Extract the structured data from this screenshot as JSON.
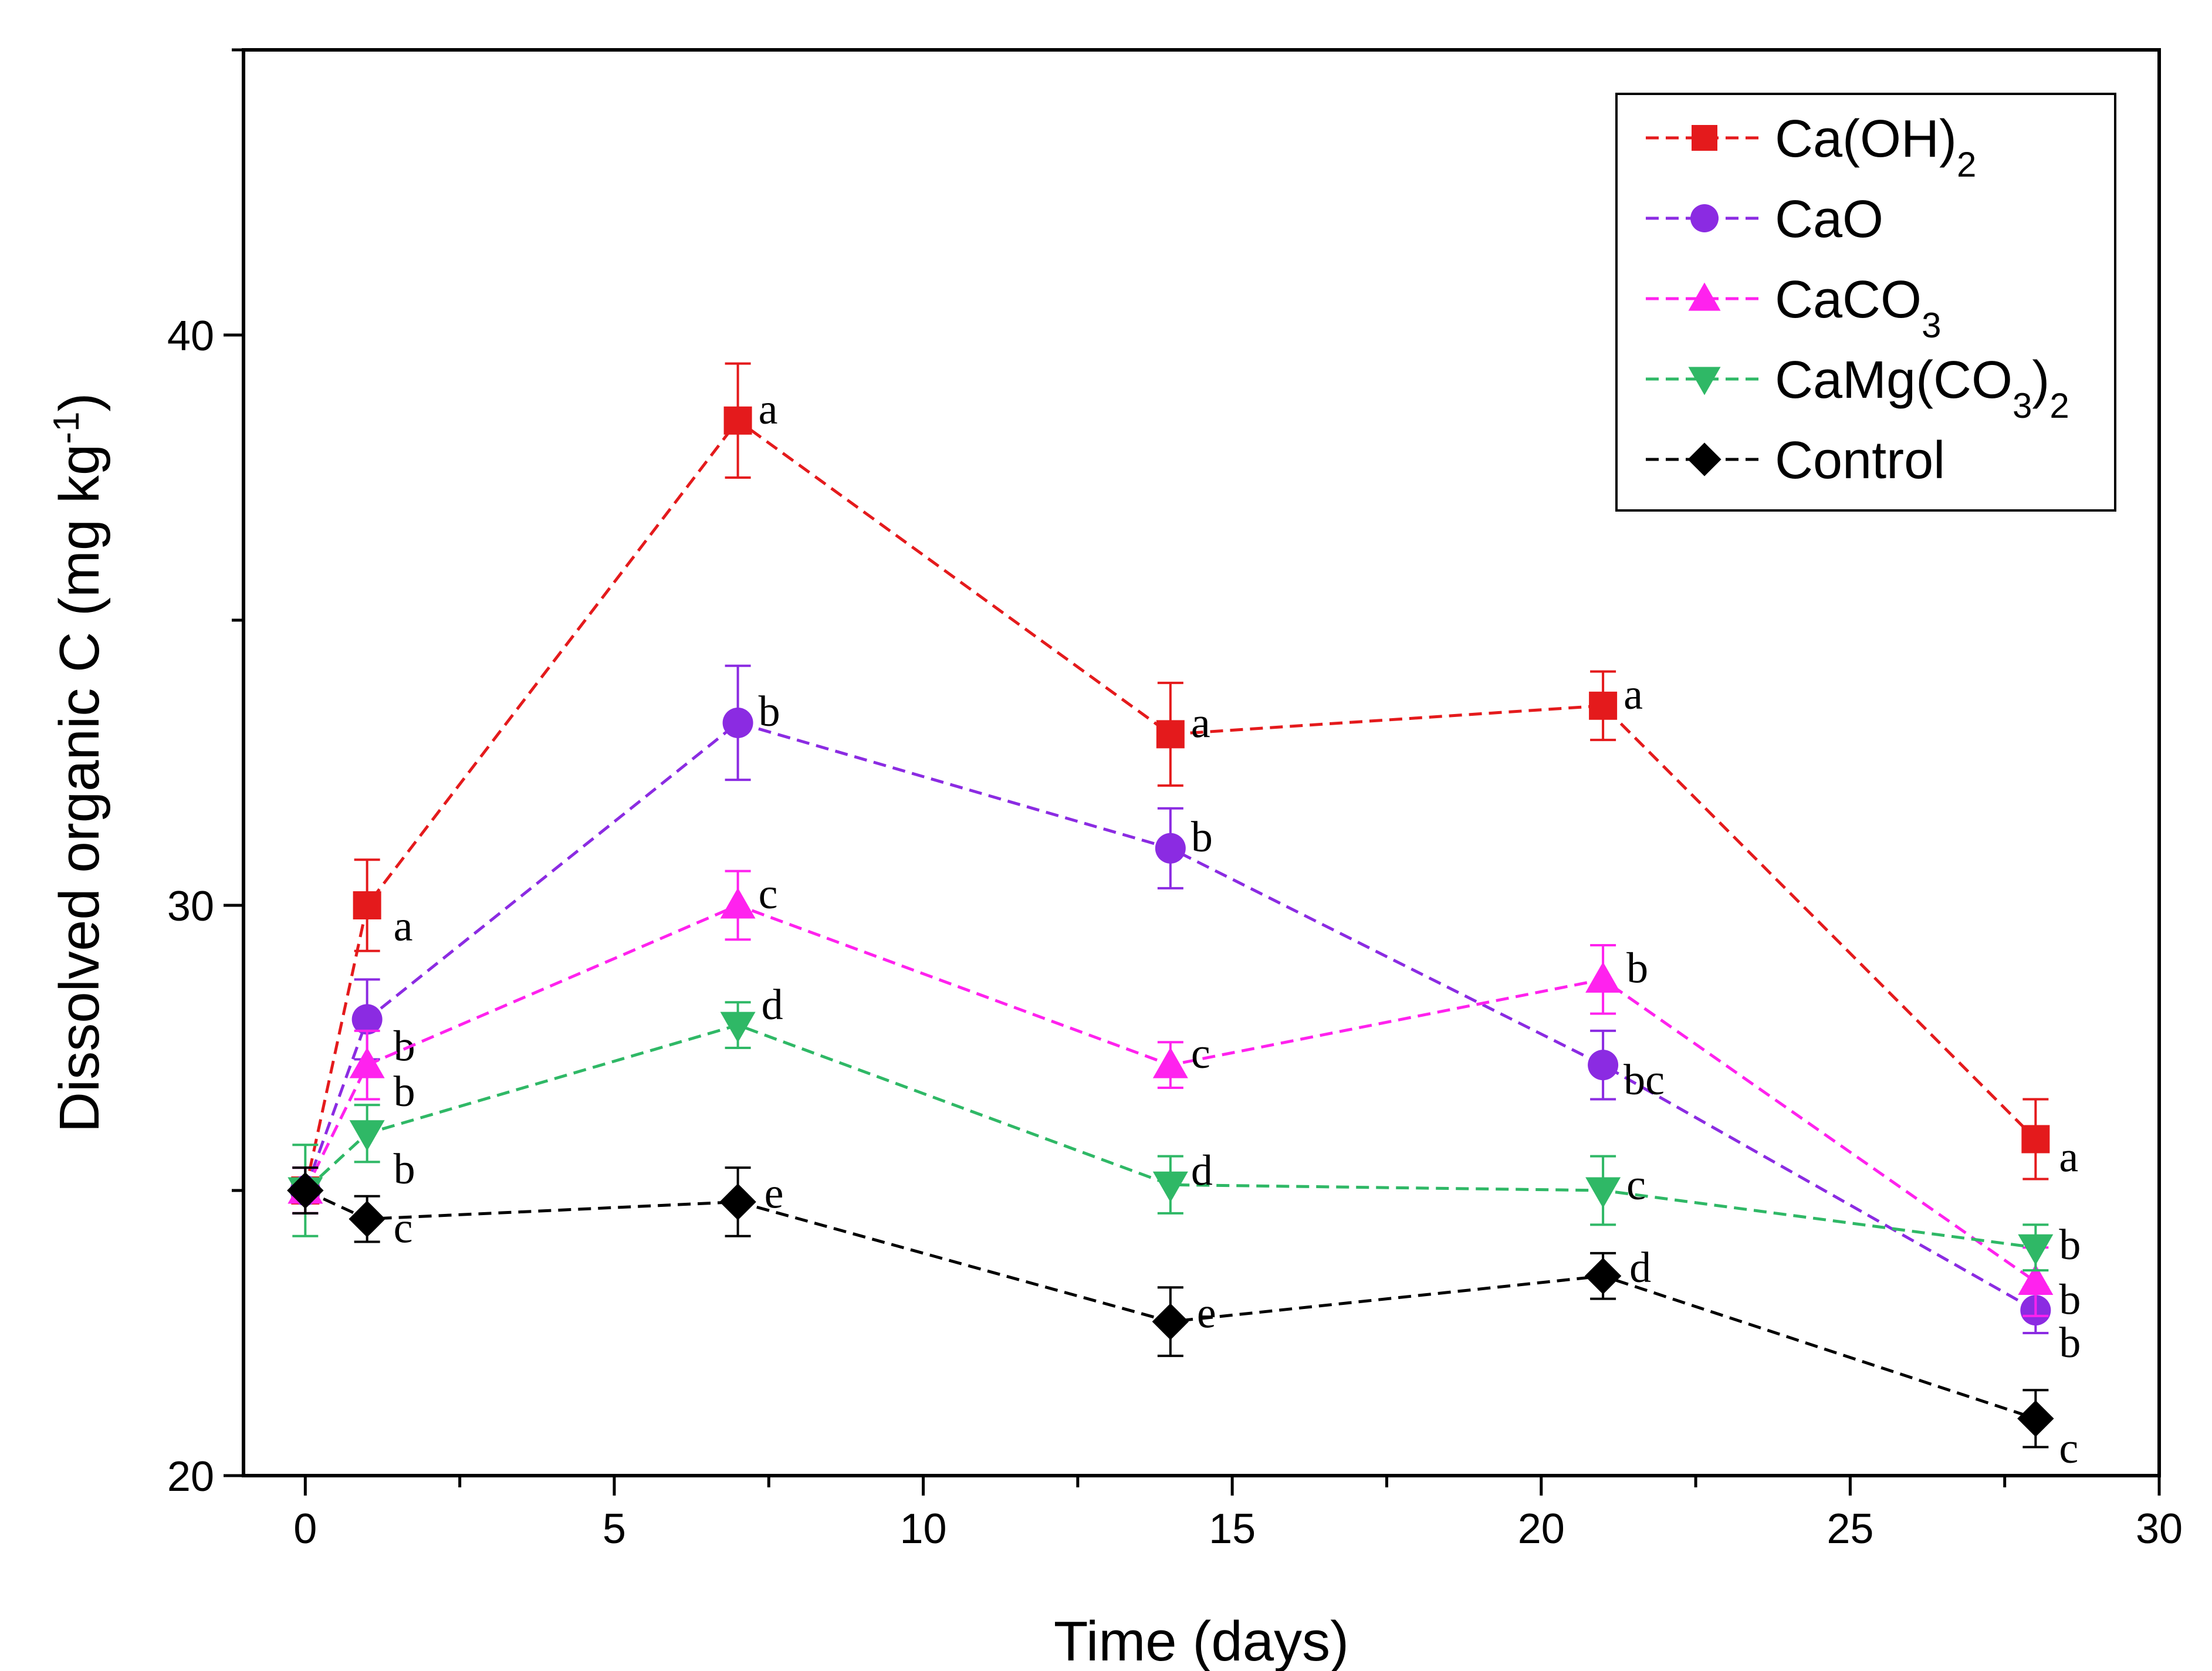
{
  "chart_data": {
    "type": "line",
    "title": "",
    "xlabel": "Time (days)",
    "ylabel": "Dissolved organic C (mg kg-1)",
    "ylabel_parts": {
      "main": "Dissolved organic C (mg kg",
      "sup": "-1",
      "close": ")"
    },
    "xlim": [
      -1,
      30
    ],
    "ylim": [
      20,
      45
    ],
    "xticks": [
      0,
      5,
      10,
      15,
      20,
      25,
      30
    ],
    "yticks": [
      20,
      30,
      40
    ],
    "grid": false,
    "legend_position": "top-right",
    "x": [
      0,
      1,
      7,
      14,
      21,
      28
    ],
    "series": [
      {
        "name": "Ca(OH)2",
        "legend_parts": {
          "main": "Ca(OH)",
          "sub": "2",
          "tail": ""
        },
        "color": "#e41a1c",
        "marker": "square",
        "values": [
          25.0,
          30.0,
          38.5,
          33.0,
          33.5,
          25.9
        ],
        "errors": [
          0.4,
          0.8,
          1.0,
          0.9,
          0.6,
          0.7
        ],
        "labels": [
          "",
          "a",
          "a",
          "a",
          "a",
          "a"
        ]
      },
      {
        "name": "CaO",
        "legend_parts": {
          "main": "CaO",
          "sub": "",
          "tail": ""
        },
        "color": "#8b2be2",
        "marker": "circle",
        "values": [
          25.0,
          28.0,
          33.2,
          31.0,
          27.2,
          22.9
        ],
        "errors": [
          0.4,
          0.7,
          1.0,
          0.7,
          0.6,
          0.4
        ],
        "labels": [
          "",
          "b",
          "b",
          "b",
          "bc",
          "b"
        ]
      },
      {
        "name": "CaCO3",
        "legend_parts": {
          "main": "CaCO",
          "sub": "3",
          "tail": ""
        },
        "color": "#ff22ee",
        "marker": "triangle-up",
        "values": [
          25.0,
          27.2,
          30.0,
          27.2,
          28.7,
          23.4
        ],
        "errors": [
          0.4,
          0.6,
          0.6,
          0.4,
          0.6,
          0.6
        ],
        "labels": [
          "",
          "b",
          "c",
          "c",
          "b",
          "b"
        ]
      },
      {
        "name": "CaMg(CO3)2",
        "legend_parts": {
          "main": "CaMg(CO",
          "sub": "3",
          "tail": ")",
          "sub2": "2"
        },
        "color": "#2fb866",
        "marker": "triangle-down",
        "values": [
          25.0,
          26.0,
          27.9,
          25.1,
          25.0,
          24.0
        ],
        "errors": [
          0.8,
          0.5,
          0.4,
          0.5,
          0.6,
          0.4
        ],
        "labels": [
          "",
          "b",
          "d",
          "d",
          "c",
          "b"
        ]
      },
      {
        "name": "Control",
        "legend_parts": {
          "main": "Control",
          "sub": "",
          "tail": ""
        },
        "color": "#000000",
        "marker": "diamond",
        "values": [
          25.0,
          24.5,
          24.8,
          22.7,
          23.5,
          21.0
        ],
        "errors": [
          0.4,
          0.4,
          0.6,
          0.6,
          0.4,
          0.5
        ],
        "labels": [
          "",
          "c",
          "e",
          "e",
          "d",
          "c"
        ]
      }
    ]
  }
}
